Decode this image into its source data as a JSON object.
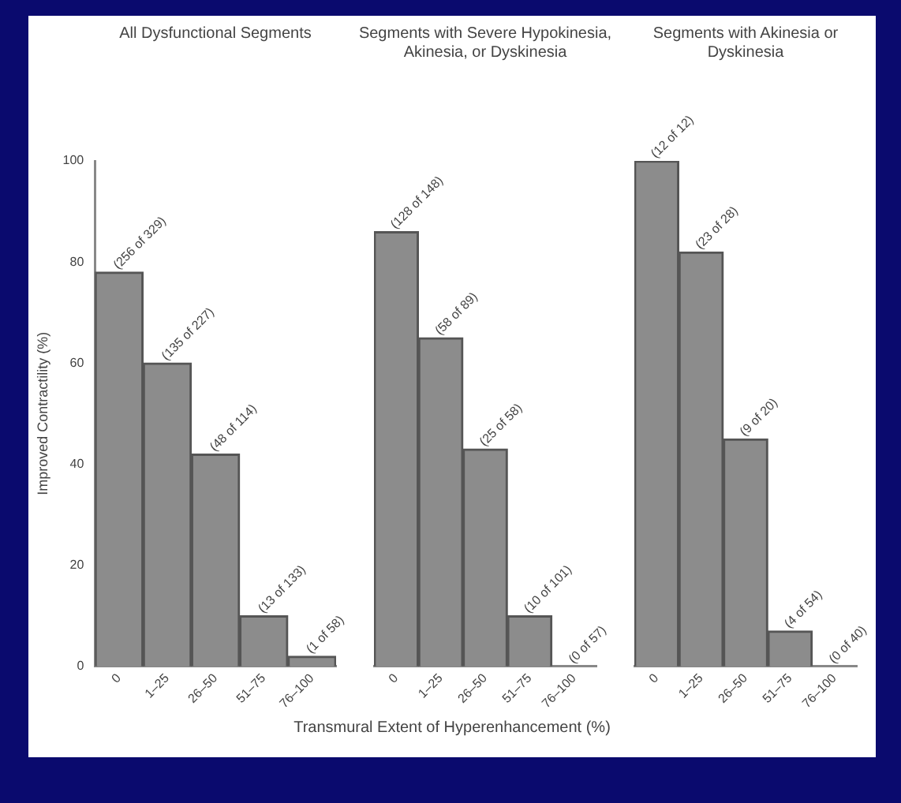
{
  "chart_data": [
    {
      "type": "bar",
      "title": "All Dysfunctional Segments",
      "ylabel": "Improved Contractility (%)",
      "categories": [
        "0",
        "1–25",
        "26–50",
        "51–75",
        "76–100"
      ],
      "values": [
        78,
        60,
        42,
        10,
        2
      ],
      "value_labels": [
        "(256 of 329)",
        "(135 of 227)",
        "(48 of 114)",
        "(13 of 133)",
        "(1 of 58)"
      ],
      "color": "#8c8c8c",
      "ylim": [
        0,
        100
      ],
      "yticks": [
        0,
        20,
        40,
        60,
        80,
        100
      ],
      "grid": false,
      "legend": false
    },
    {
      "type": "bar",
      "title": "Segments with Severe Hypokinesia, Akinesia, or Dyskinesia",
      "xlabel": "Transmural Extent of Hyperenhancement (%)",
      "categories": [
        "0",
        "1–25",
        "26–50",
        "51–75",
        "76–100"
      ],
      "values": [
        86,
        65,
        43,
        10,
        0
      ],
      "value_labels": [
        "(128 of 148)",
        "(58 of 89)",
        "(25 of 58)",
        "(10 of 101)",
        "(0 of 57)"
      ],
      "color": "#8c8c8c",
      "ylim": [
        0,
        100
      ],
      "tick_labels": "x",
      "grid": false,
      "legend": false
    },
    {
      "type": "bar",
      "title": "Segments with Akinesia or Dyskinesia",
      "categories": [
        "0",
        "1–25",
        "26–50",
        "51–75",
        "76–100"
      ],
      "values": [
        100,
        82,
        45,
        7,
        0
      ],
      "value_labels": [
        "(12 of 12)",
        "(23 of 28)",
        "(9 of 20)",
        "(4 of 54)",
        "(0 of 40)"
      ],
      "color": "#8c8c8c",
      "ylim": [
        0,
        100
      ],
      "tick_labels": "x",
      "grid": false,
      "legend": false
    }
  ]
}
